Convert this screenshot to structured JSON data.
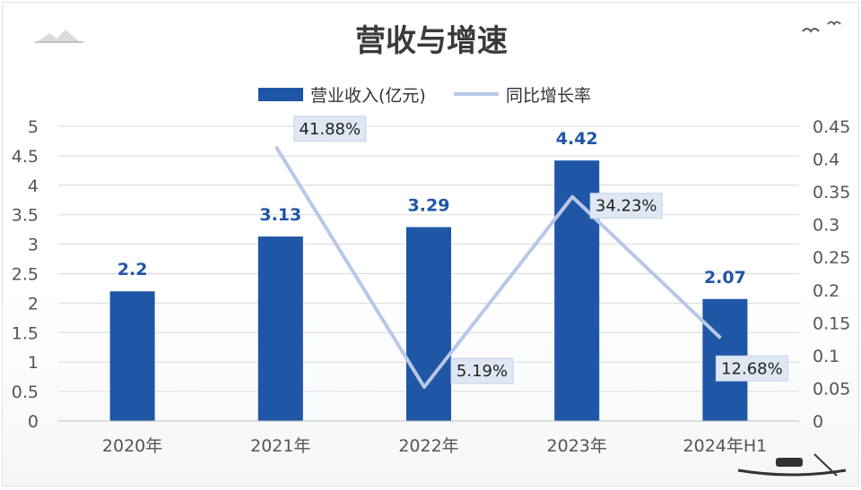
{
  "chart_data": {
    "type": "bar",
    "title": "营收与增速",
    "categories": [
      "2020年",
      "2021年",
      "2022年",
      "2023年",
      "2024年H1"
    ],
    "series": [
      {
        "name": "营业收入(亿元)",
        "type": "bar",
        "axis": "left",
        "color": "#1f56a6",
        "values": [
          2.2,
          3.13,
          3.29,
          4.42,
          2.07
        ],
        "labels": [
          "2.2",
          "3.13",
          "3.29",
          "4.42",
          "2.07"
        ]
      },
      {
        "name": "同比增长率",
        "type": "line",
        "axis": "right",
        "color": "#b8c8e6",
        "values": [
          null,
          0.4188,
          0.0519,
          0.3423,
          0.1268
        ],
        "labels": [
          "",
          "41.88%",
          "5.19%",
          "34.23%",
          "12.68%"
        ]
      }
    ],
    "y_left": {
      "ylim": [
        0,
        5
      ],
      "ticks": [
        "0",
        "0.5",
        "1",
        "1.5",
        "2",
        "2.5",
        "3",
        "3.5",
        "4",
        "4.5",
        "5"
      ]
    },
    "y_right": {
      "ylim": [
        0,
        0.45
      ],
      "ticks": [
        "0",
        "0.05",
        "0.1",
        "0.15",
        "0.2",
        "0.25",
        "0.3",
        "0.35",
        "0.4",
        "0.45"
      ]
    },
    "grid": true,
    "legend_position": "top-center"
  }
}
